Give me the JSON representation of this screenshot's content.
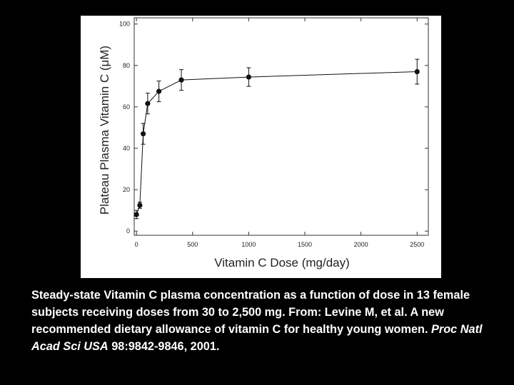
{
  "chart_data": {
    "type": "line",
    "x_label": "Vitamin C Dose (mg/day)",
    "y_label": "Plateau Plasma Vitamin C (μM)",
    "x": [
      0,
      30,
      60,
      100,
      200,
      400,
      1000,
      2500
    ],
    "series": [
      {
        "color": "#111111",
        "values": [
          8,
          12.5,
          47,
          61.6,
          67.5,
          73,
          74.4,
          77
        ],
        "errors": [
          2,
          1.5,
          5,
          5,
          5,
          5,
          4.5,
          6
        ]
      }
    ],
    "xlim": [
      -20,
      2600
    ],
    "ylim": [
      -2,
      103
    ],
    "xticks": [
      0,
      500,
      1000,
      1500,
      2000,
      2500
    ],
    "yticks": [
      0,
      20,
      40,
      60,
      80,
      100
    ]
  },
  "caption": {
    "text": "Steady-state Vitamin C plasma concentration as a function of dose in 13 female subjects receiving doses from 30 to 2,500 mg.  From: Levine M, et al. A new recommended dietary allowance of vitamin C for healthy young women.",
    "journal": "Proc Natl Acad Sci USA",
    "citation": "98:9842-9846, 2001."
  }
}
